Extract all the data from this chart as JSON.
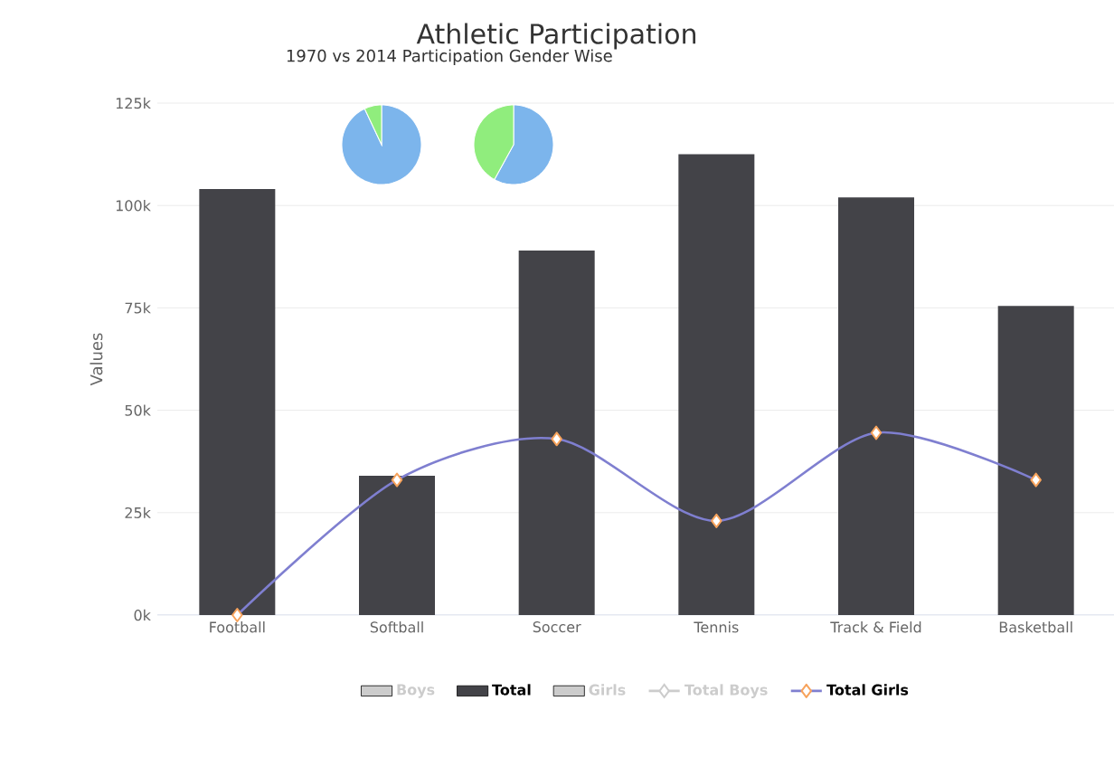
{
  "chart_data": [
    {
      "type": "bar",
      "title": "Athletic Participation",
      "ylabel": "Values",
      "categories": [
        "Football",
        "Softball",
        "Soccer",
        "Tennis",
        "Track & Field",
        "Basketball"
      ],
      "series": [
        {
          "name": "Boys",
          "type": "bar",
          "color": "#cccccc",
          "values": [
            null,
            null,
            null,
            null,
            null,
            null
          ]
        },
        {
          "name": "Total",
          "type": "bar",
          "color": "#434348",
          "values": [
            104000,
            34000,
            89000,
            112500,
            102000,
            75500
          ]
        },
        {
          "name": "Girls",
          "type": "bar",
          "color": "#cccccc",
          "values": [
            null,
            null,
            null,
            null,
            null,
            null
          ]
        },
        {
          "name": "Total Boys",
          "type": "line",
          "color": "#cccccc",
          "values": [
            null,
            null,
            null,
            null,
            null,
            null
          ]
        },
        {
          "name": "Total Girls",
          "type": "line",
          "color": "#7f7fd0",
          "values": [
            0,
            33000,
            43000,
            23000,
            44500,
            33000
          ]
        }
      ],
      "marker": "diamond",
      "ylim": [
        0,
        125000
      ],
      "yticks": [
        {
          "value": 0,
          "label": "0k"
        },
        {
          "value": 25000,
          "label": "25k"
        },
        {
          "value": 50000,
          "label": "50k"
        },
        {
          "value": 75000,
          "label": "75k"
        },
        {
          "value": 100000,
          "label": "100k"
        },
        {
          "value": 125000,
          "label": "125k"
        }
      ],
      "grid": "y",
      "legend": "bottom"
    },
    {
      "type": "pie",
      "title": "1970 vs 2014 Participation Gender Wise",
      "categories": [
        null,
        null
      ],
      "values": [
        93,
        7
      ],
      "colors": [
        "#7cb5ec",
        "#90ed7d"
      ]
    },
    {
      "type": "pie",
      "categories": [
        null,
        null
      ],
      "values": [
        58,
        42
      ],
      "colors": [
        "#7cb5ec",
        "#90ed7d"
      ]
    }
  ]
}
